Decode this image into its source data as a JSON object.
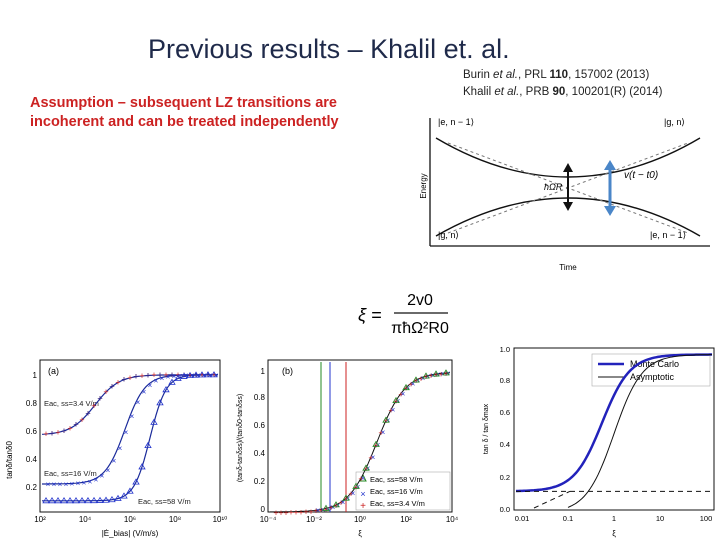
{
  "slide": {
    "title": "Previous results – Khalil et. al.",
    "ref1": {
      "authors": "Burin ",
      "etal": "et al.",
      "journal": ", PRL ",
      "vol": "110",
      "rest": ", 157002 (2013)"
    },
    "ref2": {
      "authors": "Khalil ",
      "etal": "et al.",
      "journal": ", PRB ",
      "vol": "90",
      "rest": ", 100201(R) (2014)"
    },
    "assumption": "Assumption – subsequent LZ transitions are incoherent and can be treated independently"
  },
  "energy_diagram": {
    "ylabel": "Energy",
    "xlabel": "Time",
    "labels": {
      "tl": "|e, n − 1⟩",
      "tr": "|g, n⟩",
      "bl": "|g, n⟩",
      "br": "|e, n − 1⟩",
      "omega": "ħΩR",
      "v": "v(t − t0)"
    },
    "colors": {
      "arrow": "#4a86c8"
    }
  },
  "formula": {
    "lhs": "ξ =",
    "num": "2v0",
    "den": "πħΩ²R0"
  },
  "panels": {
    "a": {
      "label": "(a)",
      "ylabel": "tanδ/tanδ0",
      "xlabel": "|Ė_bias| (V/m/s)",
      "legend": [
        "Eac, ss=3.4 V/m",
        "Eac, ss=16 V/m",
        "Eac, ss=58 V/m"
      ],
      "xticks": [
        "10²",
        "10⁴",
        "10⁶",
        "10⁸",
        "10¹⁰"
      ],
      "yticks": [
        "0.2",
        "0.4",
        "0.6",
        "0.8",
        "1"
      ]
    },
    "b": {
      "label": "(b)",
      "ylabel": "(tanδ-tanδss)/(tanδ0-tanδss)",
      "xlabel": "ξ",
      "legend": [
        "Eac, ss=58 V/m",
        "Eac, ss=16 V/m",
        "Eac, ss=3.4 V/m"
      ],
      "xticks": [
        "10⁻⁴",
        "10⁻²",
        "10⁰",
        "10²",
        "10⁴"
      ],
      "yticks": [
        "0",
        "0.2",
        "0.4",
        "0.6",
        "0.8",
        "1"
      ]
    },
    "c": {
      "legend": [
        "Monte Carlo",
        "Asymptotic"
      ],
      "ylabel": "tan δ / tan δmax",
      "xlabel": "ξ",
      "xticks": [
        "0.01",
        "0.1",
        "1",
        "10",
        "100"
      ],
      "yticks": [
        "0.0",
        "0.2",
        "0.4",
        "0.6",
        "0.8",
        "1.0"
      ],
      "colors": {
        "mc": "#2222bb",
        "asym": "#111111"
      }
    }
  }
}
